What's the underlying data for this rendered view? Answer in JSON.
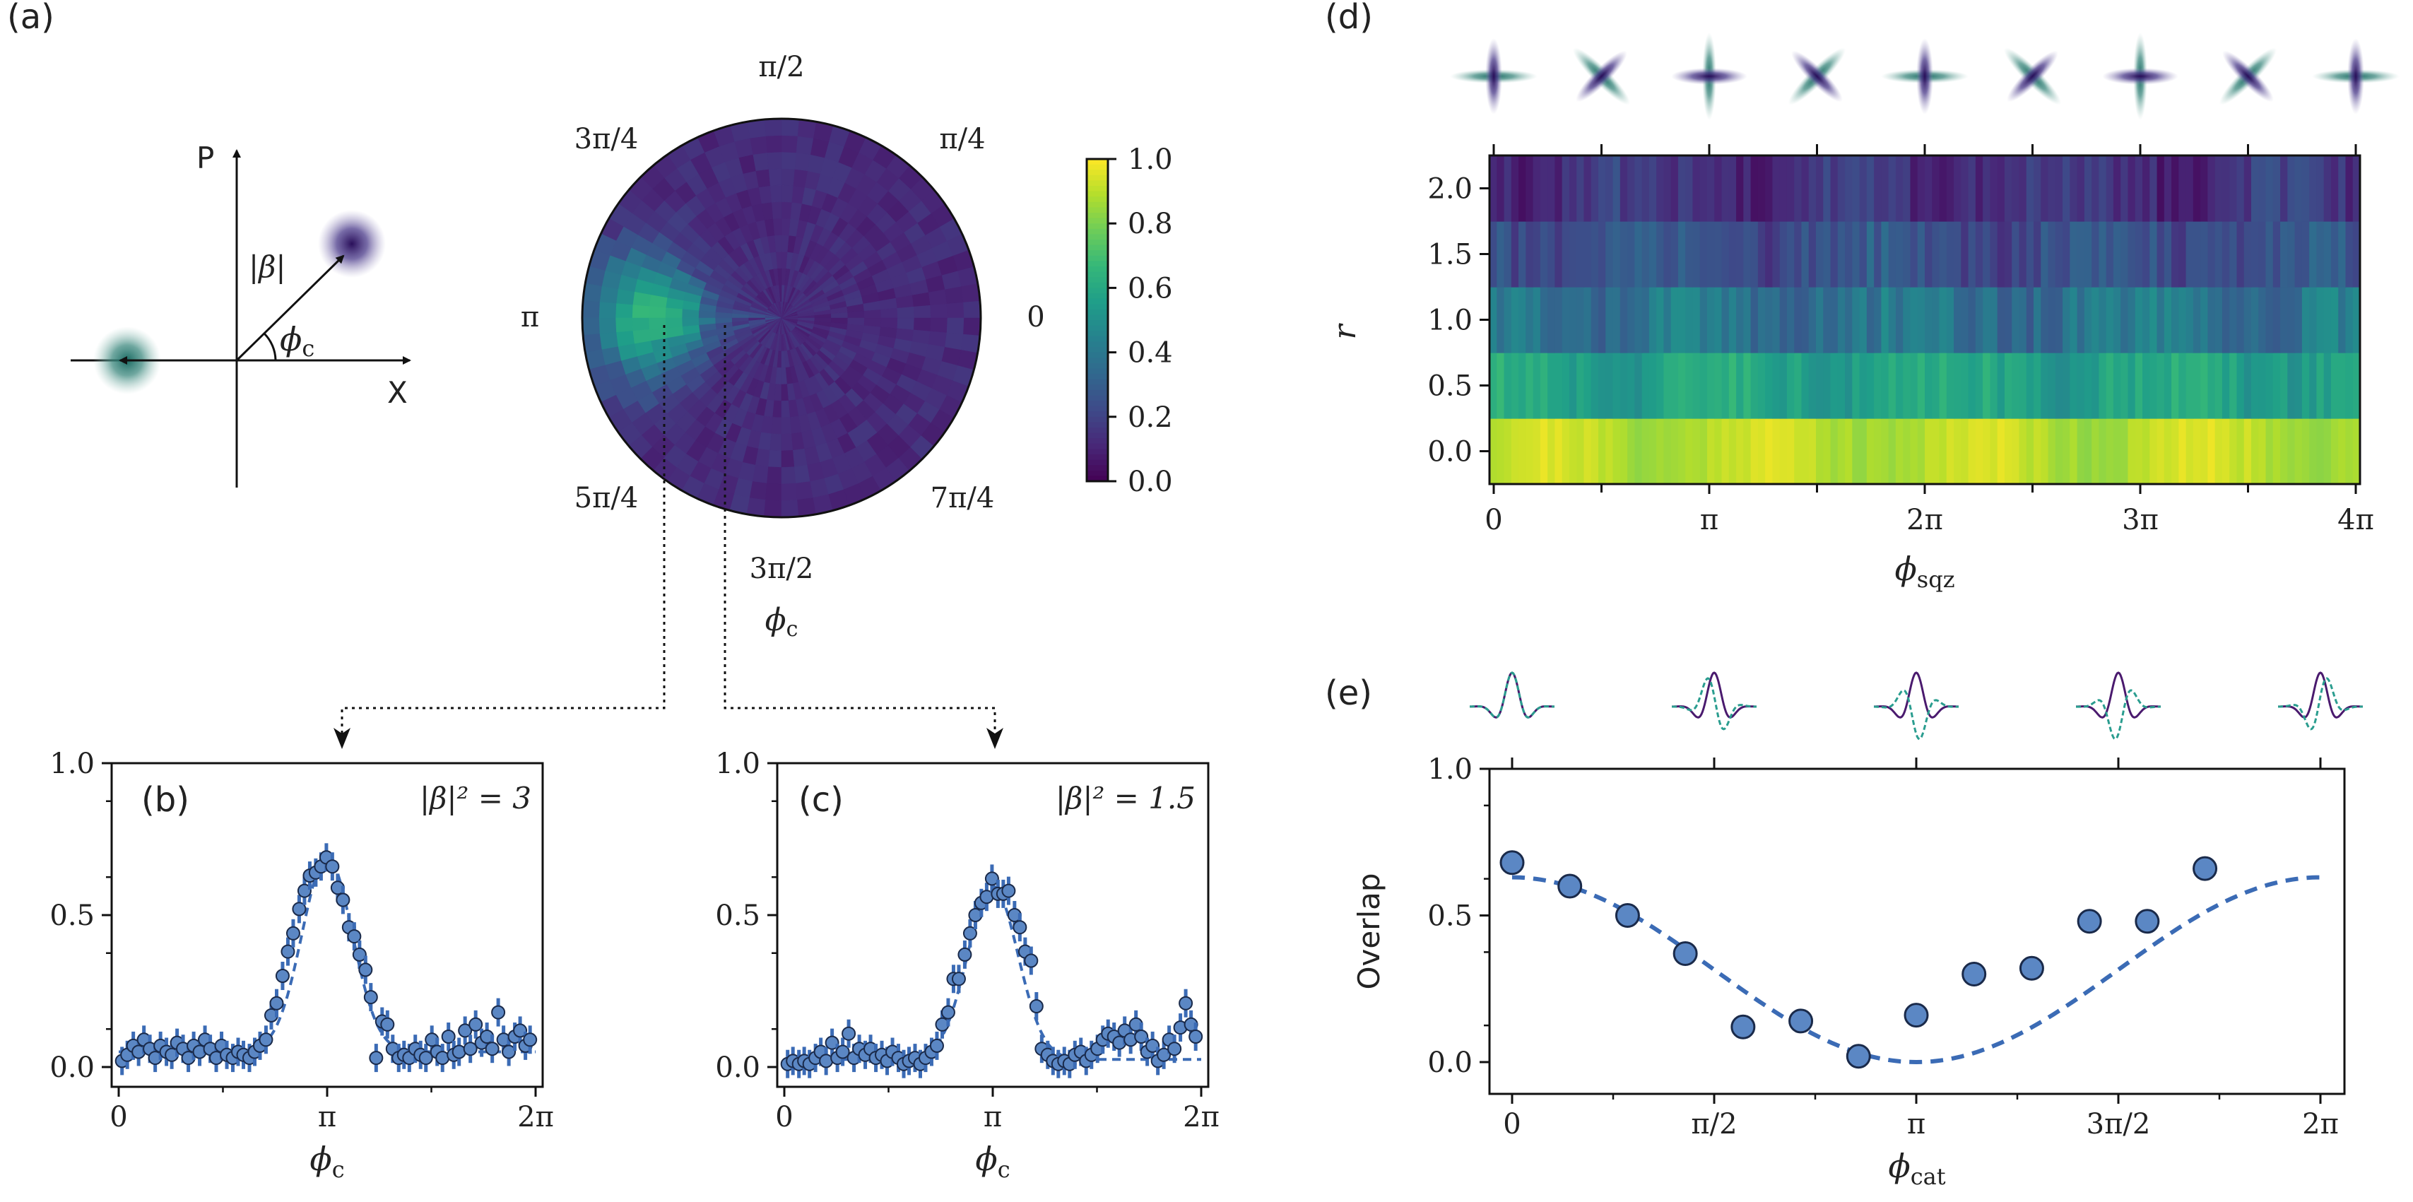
{
  "panel_labels": {
    "a": "(a)",
    "b": "(b)",
    "c": "(c)",
    "d": "(d)",
    "e": "(e)"
  },
  "schematic": {
    "p_axis": "P",
    "x_axis": "X",
    "beta_label": "|β|",
    "phi_main": "ϕ",
    "phi_sub": "c",
    "blob_colors": {
      "cat": "#3b1f6e",
      "squeezed": "#1f7a6c"
    }
  },
  "polar": {
    "angle_labels": [
      "π/2",
      "π/4",
      "0",
      "7π/4",
      "3π/2",
      "5π/4",
      "π",
      "3π/4"
    ],
    "axis_label_main": "ϕ",
    "axis_label_sub": "c"
  },
  "colorbar": {
    "ticks": [
      "0.0",
      "0.2",
      "0.4",
      "0.6",
      "0.8",
      "1.0"
    ],
    "colormap": "viridis"
  },
  "chart_data": [
    {
      "id": "b",
      "type": "scatter",
      "annotation": "|β|² = 3",
      "xlabel_main": "ϕ",
      "xlabel_sub": "c",
      "xticks": [
        "0",
        "π",
        "2π"
      ],
      "yticks": [
        "0.0",
        "0.5",
        "1.0"
      ],
      "xlim": [
        0,
        6.2832
      ],
      "ylim": [
        0,
        1
      ],
      "marker_color": "#5b87c4",
      "line_color": "#3b6bb5",
      "fit_style": "dashed",
      "points": [
        [
          0.05,
          0.02
        ],
        [
          0.13,
          0.04
        ],
        [
          0.22,
          0.07
        ],
        [
          0.3,
          0.05
        ],
        [
          0.38,
          0.09
        ],
        [
          0.47,
          0.06
        ],
        [
          0.55,
          0.03
        ],
        [
          0.63,
          0.07
        ],
        [
          0.72,
          0.05
        ],
        [
          0.8,
          0.04
        ],
        [
          0.88,
          0.08
        ],
        [
          0.97,
          0.06
        ],
        [
          1.05,
          0.03
        ],
        [
          1.13,
          0.07
        ],
        [
          1.22,
          0.05
        ],
        [
          1.3,
          0.09
        ],
        [
          1.38,
          0.06
        ],
        [
          1.47,
          0.03
        ],
        [
          1.55,
          0.07
        ],
        [
          1.63,
          0.04
        ],
        [
          1.72,
          0.03
        ],
        [
          1.8,
          0.05
        ],
        [
          1.88,
          0.04
        ],
        [
          1.97,
          0.03
        ],
        [
          2.05,
          0.05
        ],
        [
          2.13,
          0.07
        ],
        [
          2.22,
          0.09
        ],
        [
          2.3,
          0.17
        ],
        [
          2.38,
          0.21
        ],
        [
          2.47,
          0.3
        ],
        [
          2.55,
          0.38
        ],
        [
          2.63,
          0.44
        ],
        [
          2.72,
          0.52
        ],
        [
          2.8,
          0.58
        ],
        [
          2.88,
          0.63
        ],
        [
          2.97,
          0.64
        ],
        [
          3.05,
          0.66
        ],
        [
          3.13,
          0.69
        ],
        [
          3.22,
          0.66
        ],
        [
          3.3,
          0.59
        ],
        [
          3.38,
          0.55
        ],
        [
          3.47,
          0.46
        ],
        [
          3.55,
          0.43
        ],
        [
          3.63,
          0.37
        ],
        [
          3.72,
          0.32
        ],
        [
          3.8,
          0.23
        ],
        [
          3.88,
          0.03
        ],
        [
          3.97,
          0.15
        ],
        [
          4.05,
          0.14
        ],
        [
          4.13,
          0.06
        ],
        [
          4.22,
          0.03
        ],
        [
          4.3,
          0.04
        ],
        [
          4.38,
          0.03
        ],
        [
          4.47,
          0.06
        ],
        [
          4.55,
          0.04
        ],
        [
          4.63,
          0.03
        ],
        [
          4.72,
          0.09
        ],
        [
          4.8,
          0.05
        ],
        [
          4.88,
          0.03
        ],
        [
          4.97,
          0.1
        ],
        [
          5.05,
          0.04
        ],
        [
          5.13,
          0.05
        ],
        [
          5.22,
          0.12
        ],
        [
          5.3,
          0.06
        ],
        [
          5.38,
          0.14
        ],
        [
          5.47,
          0.08
        ],
        [
          5.55,
          0.1
        ],
        [
          5.63,
          0.06
        ],
        [
          5.72,
          0.18
        ],
        [
          5.8,
          0.09
        ],
        [
          5.88,
          0.05
        ],
        [
          5.97,
          0.1
        ],
        [
          6.05,
          0.12
        ],
        [
          6.13,
          0.07
        ],
        [
          6.2,
          0.09
        ]
      ],
      "fit": {
        "amplitude": 0.64,
        "center": 3.1416,
        "width": 0.38,
        "offset": 0.05
      }
    },
    {
      "id": "c",
      "type": "scatter",
      "annotation": "|β|² = 1.5",
      "xlabel_main": "ϕ",
      "xlabel_sub": "c",
      "xticks": [
        "0",
        "π",
        "2π"
      ],
      "yticks": [
        "0.0",
        "0.5",
        "1.0"
      ],
      "xlim": [
        0,
        6.2832
      ],
      "ylim": [
        0,
        1
      ],
      "marker_color": "#5b87c4",
      "line_color": "#3b6bb5",
      "fit_style": "dashed",
      "points": [
        [
          0.05,
          0.01
        ],
        [
          0.13,
          0.02
        ],
        [
          0.22,
          0.01
        ],
        [
          0.3,
          0.02
        ],
        [
          0.38,
          0.01
        ],
        [
          0.47,
          0.03
        ],
        [
          0.55,
          0.05
        ],
        [
          0.63,
          0.02
        ],
        [
          0.72,
          0.08
        ],
        [
          0.8,
          0.03
        ],
        [
          0.88,
          0.05
        ],
        [
          0.97,
          0.11
        ],
        [
          1.05,
          0.03
        ],
        [
          1.13,
          0.06
        ],
        [
          1.22,
          0.04
        ],
        [
          1.3,
          0.06
        ],
        [
          1.38,
          0.03
        ],
        [
          1.47,
          0.04
        ],
        [
          1.55,
          0.02
        ],
        [
          1.63,
          0.05
        ],
        [
          1.72,
          0.03
        ],
        [
          1.8,
          0.01
        ],
        [
          1.88,
          0.02
        ],
        [
          1.97,
          0.03
        ],
        [
          2.05,
          0.01
        ],
        [
          2.13,
          0.03
        ],
        [
          2.22,
          0.05
        ],
        [
          2.3,
          0.07
        ],
        [
          2.38,
          0.14
        ],
        [
          2.47,
          0.18
        ],
        [
          2.55,
          0.29
        ],
        [
          2.63,
          0.29
        ],
        [
          2.72,
          0.37
        ],
        [
          2.8,
          0.44
        ],
        [
          2.88,
          0.5
        ],
        [
          2.97,
          0.54
        ],
        [
          3.05,
          0.56
        ],
        [
          3.13,
          0.62
        ],
        [
          3.22,
          0.57
        ],
        [
          3.3,
          0.57
        ],
        [
          3.38,
          0.58
        ],
        [
          3.47,
          0.5
        ],
        [
          3.55,
          0.46
        ],
        [
          3.63,
          0.38
        ],
        [
          3.72,
          0.35
        ],
        [
          3.8,
          0.2
        ],
        [
          3.88,
          0.06
        ],
        [
          3.97,
          0.04
        ],
        [
          4.05,
          0.02
        ],
        [
          4.13,
          0.01
        ],
        [
          4.22,
          0.02
        ],
        [
          4.3,
          0.01
        ],
        [
          4.38,
          0.04
        ],
        [
          4.47,
          0.05
        ],
        [
          4.55,
          0.02
        ],
        [
          4.63,
          0.04
        ],
        [
          4.72,
          0.06
        ],
        [
          4.8,
          0.09
        ],
        [
          4.88,
          0.11
        ],
        [
          4.97,
          0.1
        ],
        [
          5.05,
          0.08
        ],
        [
          5.13,
          0.12
        ],
        [
          5.22,
          0.09
        ],
        [
          5.3,
          0.14
        ],
        [
          5.38,
          0.1
        ],
        [
          5.47,
          0.05
        ],
        [
          5.55,
          0.07
        ],
        [
          5.63,
          0.02
        ],
        [
          5.72,
          0.04
        ],
        [
          5.8,
          0.09
        ],
        [
          5.88,
          0.06
        ],
        [
          5.97,
          0.13
        ],
        [
          6.05,
          0.21
        ],
        [
          6.13,
          0.14
        ],
        [
          6.2,
          0.1
        ]
      ],
      "fit": {
        "amplitude": 0.57,
        "center": 3.1416,
        "width": 0.38,
        "offset": 0.025
      }
    },
    {
      "id": "d",
      "type": "heatmap",
      "ylabel": "r",
      "xlabel_main": "ϕ",
      "xlabel_sub": "sqz",
      "xticks": [
        "0",
        "π",
        "2π",
        "3π",
        "4π"
      ],
      "yticks": [
        "0.0",
        "0.5",
        "1.0",
        "1.5",
        "2.0"
      ],
      "xlim": [
        0,
        12.566
      ],
      "rows": [
        0.0,
        0.5,
        1.0,
        1.5,
        2.0
      ],
      "n_columns": 120,
      "row_mean": [
        0.9,
        0.58,
        0.38,
        0.25,
        0.15
      ],
      "row_variation": [
        0.03,
        0.06,
        0.08,
        0.07,
        0.07
      ],
      "colormap": "viridis",
      "clim": [
        0,
        1
      ]
    },
    {
      "id": "e",
      "type": "scatter",
      "ylabel": "Overlap",
      "xlabel_main": "ϕ",
      "xlabel_sub": "cat",
      "xticks": [
        "0",
        "π/2",
        "π",
        "3π/2",
        "2π"
      ],
      "yticks": [
        "0.0",
        "0.5",
        "1.0"
      ],
      "xlim": [
        0,
        6.2832
      ],
      "ylim": [
        0,
        1
      ],
      "marker_color": "#5b87c4",
      "line_color": "#3b6bb5",
      "fit_style": "dashed",
      "points": [
        [
          0.0,
          0.68
        ],
        [
          0.4488,
          0.6
        ],
        [
          0.8976,
          0.5
        ],
        [
          1.3464,
          0.37
        ],
        [
          1.7952,
          0.12
        ],
        [
          2.244,
          0.14
        ],
        [
          2.6928,
          0.02
        ],
        [
          3.1416,
          0.16
        ],
        [
          3.5904,
          0.3
        ],
        [
          4.0392,
          0.32
        ],
        [
          4.488,
          0.48
        ],
        [
          4.9368,
          0.48
        ],
        [
          5.3856,
          0.66
        ]
      ],
      "fit": {
        "type": "cos2",
        "amplitude": 0.63
      }
    }
  ]
}
